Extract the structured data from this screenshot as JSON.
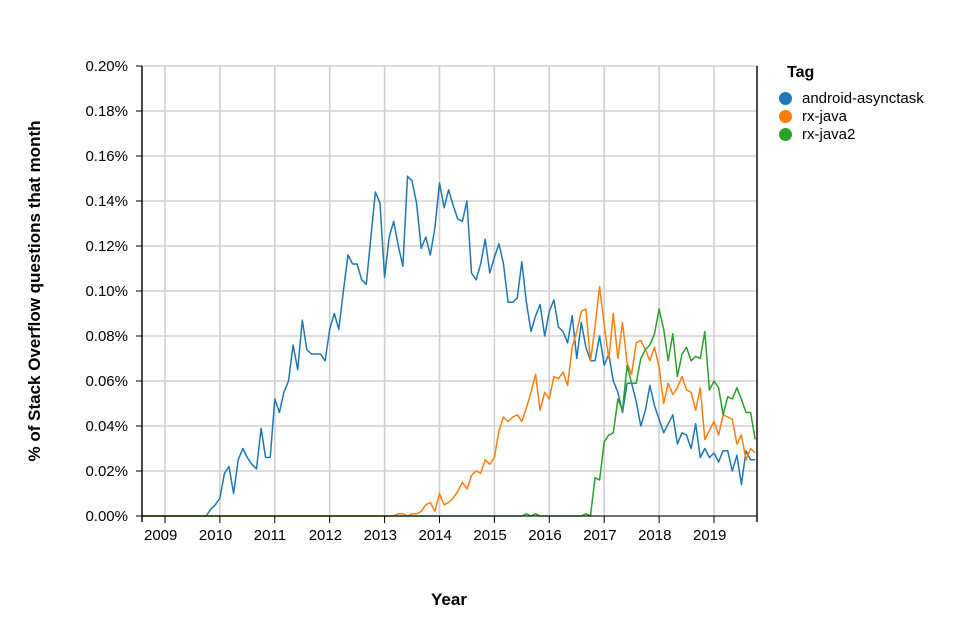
{
  "chart_data": {
    "type": "line",
    "title": "",
    "xlabel": "Year",
    "ylabel": "% of Stack Overflow questions that month",
    "ylim": [
      0,
      0.2
    ],
    "y_ticks": [
      "0.00%",
      "0.02%",
      "0.04%",
      "0.06%",
      "0.08%",
      "0.10%",
      "0.12%",
      "0.14%",
      "0.16%",
      "0.18%",
      "0.20%"
    ],
    "x_ticks": [
      "2009",
      "2010",
      "2011",
      "2012",
      "2013",
      "2014",
      "2015",
      "2016",
      "2017",
      "2018",
      "2019"
    ],
    "x_start": "2008-08",
    "x_end": "2019-10",
    "grid": true,
    "legend_title": "Tag",
    "legend_position": "right",
    "series": [
      {
        "name": "android-asynctask",
        "color": "#1f77b4",
        "start": "2008-08",
        "values": [
          0,
          0,
          0,
          0,
          0,
          0,
          0,
          0,
          0,
          0,
          0,
          0,
          0,
          0,
          0,
          0.003,
          0.005,
          0.008,
          0.019,
          0.022,
          0.01,
          0.025,
          0.03,
          0.026,
          0.023,
          0.021,
          0.039,
          0.026,
          0.026,
          0.052,
          0.046,
          0.055,
          0.06,
          0.076,
          0.065,
          0.087,
          0.074,
          0.072,
          0.072,
          0.072,
          0.069,
          0.083,
          0.09,
          0.083,
          0.1,
          0.116,
          0.112,
          0.112,
          0.105,
          0.103,
          0.124,
          0.144,
          0.139,
          0.106,
          0.124,
          0.131,
          0.12,
          0.111,
          0.151,
          0.149,
          0.139,
          0.119,
          0.124,
          0.116,
          0.128,
          0.148,
          0.137,
          0.145,
          0.138,
          0.132,
          0.131,
          0.14,
          0.108,
          0.105,
          0.112,
          0.123,
          0.108,
          0.115,
          0.121,
          0.112,
          0.095,
          0.095,
          0.097,
          0.113,
          0.095,
          0.082,
          0.089,
          0.094,
          0.08,
          0.091,
          0.096,
          0.084,
          0.082,
          0.077,
          0.089,
          0.07,
          0.086,
          0.075,
          0.069,
          0.069,
          0.08,
          0.067,
          0.072,
          0.06,
          0.055,
          0.046,
          0.059,
          0.059,
          0.051,
          0.04,
          0.047,
          0.058,
          0.049,
          0.043,
          0.037,
          0.041,
          0.045,
          0.032,
          0.037,
          0.036,
          0.03,
          0.041,
          0.026,
          0.03,
          0.026,
          0.028,
          0.024,
          0.029,
          0.029,
          0.02,
          0.027,
          0.014,
          0.029,
          0.025,
          0.025
        ]
      },
      {
        "name": "rx-java",
        "color": "#ff7f0e",
        "start": "2008-08",
        "values": [
          0,
          0,
          0,
          0,
          0,
          0,
          0,
          0,
          0,
          0,
          0,
          0,
          0,
          0,
          0,
          0,
          0,
          0,
          0,
          0,
          0,
          0,
          0,
          0,
          0,
          0,
          0,
          0,
          0,
          0,
          0,
          0,
          0,
          0,
          0,
          0,
          0,
          0,
          0,
          0,
          0,
          0,
          0,
          0,
          0,
          0,
          0,
          0,
          0,
          0,
          0,
          0,
          0,
          0,
          0,
          0,
          0.001,
          0.001,
          0.0,
          0.001,
          0.001,
          0.002,
          0.005,
          0.006,
          0.002,
          0.01,
          0.005,
          0.006,
          0.008,
          0.011,
          0.015,
          0.012,
          0.018,
          0.02,
          0.019,
          0.025,
          0.023,
          0.026,
          0.038,
          0.044,
          0.042,
          0.044,
          0.045,
          0.042,
          0.048,
          0.055,
          0.063,
          0.047,
          0.055,
          0.052,
          0.062,
          0.061,
          0.064,
          0.058,
          0.075,
          0.082,
          0.091,
          0.092,
          0.069,
          0.084,
          0.102,
          0.085,
          0.07,
          0.09,
          0.07,
          0.086,
          0.068,
          0.063,
          0.077,
          0.078,
          0.074,
          0.069,
          0.075,
          0.066,
          0.05,
          0.059,
          0.054,
          0.057,
          0.062,
          0.056,
          0.055,
          0.047,
          0.057,
          0.034,
          0.038,
          0.042,
          0.036,
          0.045,
          0.044,
          0.043,
          0.032,
          0.036,
          0.025,
          0.03,
          0.028
        ]
      },
      {
        "name": "rx-java2",
        "color": "#2ca02c",
        "start": "2008-08",
        "values": [
          0,
          0,
          0,
          0,
          0,
          0,
          0,
          0,
          0,
          0,
          0,
          0,
          0,
          0,
          0,
          0,
          0,
          0,
          0,
          0,
          0,
          0,
          0,
          0,
          0,
          0,
          0,
          0,
          0,
          0,
          0,
          0,
          0,
          0,
          0,
          0,
          0,
          0,
          0,
          0,
          0,
          0,
          0,
          0,
          0,
          0,
          0,
          0,
          0,
          0,
          0,
          0,
          0,
          0,
          0,
          0,
          0,
          0,
          0,
          0,
          0,
          0,
          0,
          0,
          0,
          0,
          0,
          0,
          0,
          0,
          0,
          0,
          0,
          0,
          0,
          0,
          0,
          0,
          0,
          0,
          0,
          0,
          0,
          0,
          0.001,
          0,
          0.001,
          0,
          0,
          0,
          0,
          0,
          0,
          0,
          0,
          0,
          0,
          0.001,
          0,
          0.017,
          0.016,
          0.033,
          0.036,
          0.037,
          0.052,
          0.047,
          0.067,
          0.059,
          0.059,
          0.07,
          0.074,
          0.076,
          0.081,
          0.092,
          0.083,
          0.069,
          0.081,
          0.062,
          0.072,
          0.075,
          0.069,
          0.071,
          0.07,
          0.082,
          0.056,
          0.06,
          0.057,
          0.045,
          0.053,
          0.052,
          0.057,
          0.052,
          0.046,
          0.046,
          0.034
        ]
      }
    ]
  },
  "legend": {
    "title": "Tag",
    "items": [
      {
        "label": "android-asynctask",
        "color": "#1f77b4"
      },
      {
        "label": "rx-java",
        "color": "#ff7f0e"
      },
      {
        "label": "rx-java2",
        "color": "#2ca02c"
      }
    ]
  },
  "axes": {
    "x_title": "Year",
    "y_title": "% of Stack Overflow questions that month"
  }
}
